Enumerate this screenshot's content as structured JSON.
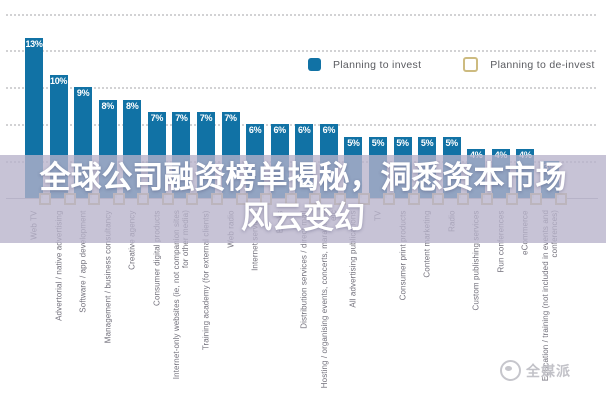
{
  "chart_data": {
    "type": "bar",
    "unit": "%",
    "ylim": [
      0,
      15
    ],
    "gridline_step_pct": 3,
    "grid": "dotted-horizontal",
    "legend_position": "top-right",
    "legend": [
      {
        "label": "Planning to invest",
        "swatch": "filled",
        "color": "#1172a5"
      },
      {
        "label": "Planning to de-invest",
        "swatch": "outlined",
        "color": "#cdbb80"
      }
    ],
    "categories": [
      "Web TV",
      "Advertorial / native advertising",
      "Software / app development",
      "Management / business consultancy",
      "Creative agency",
      "Consumer digital products",
      "Internet-only websites (ie, not companion sites for other media)",
      "Training academy (for external clients)",
      "Web radio",
      "Internet services",
      "Books",
      "Distribution services / direct mail",
      "Hosting / organising events, concerts, marathons etc",
      "All advertising publications",
      "TV",
      "Consumer print products",
      "Content marketing",
      "Radio",
      "Custom publishing services",
      "Run conferences",
      "eCommerce",
      "Education / training (not included in events and conferences)"
    ],
    "series": [
      {
        "name": "Planning to invest",
        "values": [
          13,
          10,
          9,
          8,
          8,
          7,
          7,
          7,
          7,
          6,
          6,
          6,
          6,
          5,
          5,
          5,
          5,
          5,
          4,
          4,
          4,
          3
        ]
      },
      {
        "name": "Planning to de-invest",
        "values_obscured_by_overlay": true,
        "shown_as": "small outlined squares at baseline"
      }
    ],
    "bar_color": "#1172a5",
    "value_label_color": "#ffffff"
  },
  "overlay": {
    "line1": "全球公司融资榜单揭秘，洞悉资本市场",
    "line2": "风云变幻"
  },
  "watermark": {
    "text": "全媒派"
  },
  "colors": {
    "bar_blue": "#1172a5",
    "deinvest_outline": "#cdbb80",
    "band_lavender": "rgba(183,178,203,0.78)",
    "gridline": "#d2d2d4",
    "label_grey": "#73717c"
  }
}
